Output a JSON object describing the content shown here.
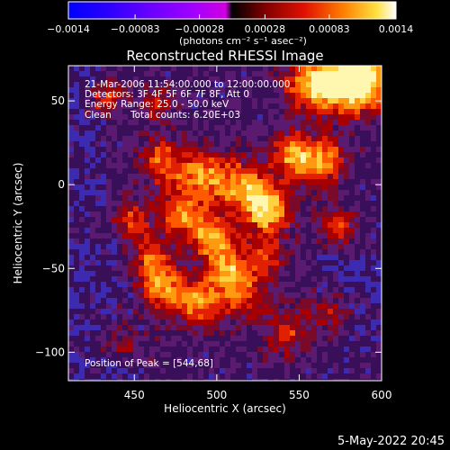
{
  "colorbar": {
    "tick_labels": [
      "−0.0014",
      "−0.00083",
      "−0.00028",
      "0.00028",
      "0.00083",
      "0.0014"
    ],
    "tick_values": [
      -0.0014,
      -0.00083,
      -0.00028,
      0.00028,
      0.00083,
      0.0014
    ],
    "range": [
      -0.0014,
      0.0014
    ],
    "units_label": "(photons cm⁻² s⁻¹ asec⁻²)"
  },
  "title": "Reconstructed RHESSI Image",
  "annotations": {
    "line1": "21-Mar-2006 11:54:00.000 to 12:00:00.000",
    "line2": "Detectors: 3F 4F 5F 6F 7F 8F, Att 0",
    "line3": "Energy Range: 25.0 - 50.0 keV",
    "line4_left": "Clean",
    "line4_right": "Total counts: 6.20E+03",
    "peak": "Position of Peak = [544,68]"
  },
  "axes": {
    "xlabel": "Heliocentric X (arcsec)",
    "ylabel": "Heliocentric Y (arcsec)",
    "x_ticks": [
      "450",
      "500",
      "550",
      "600"
    ],
    "x_tick_values": [
      450,
      500,
      550,
      600
    ],
    "y_ticks": [
      "50",
      "0",
      "−50",
      "−100"
    ],
    "y_tick_values": [
      50,
      0,
      -50,
      -100
    ],
    "xlim": [
      410,
      600
    ],
    "ylim": [
      -117,
      71
    ]
  },
  "footer": {
    "date": "5-May-2022 20:45"
  },
  "colors": {
    "background": "#000000",
    "text": "#ffffff"
  }
}
